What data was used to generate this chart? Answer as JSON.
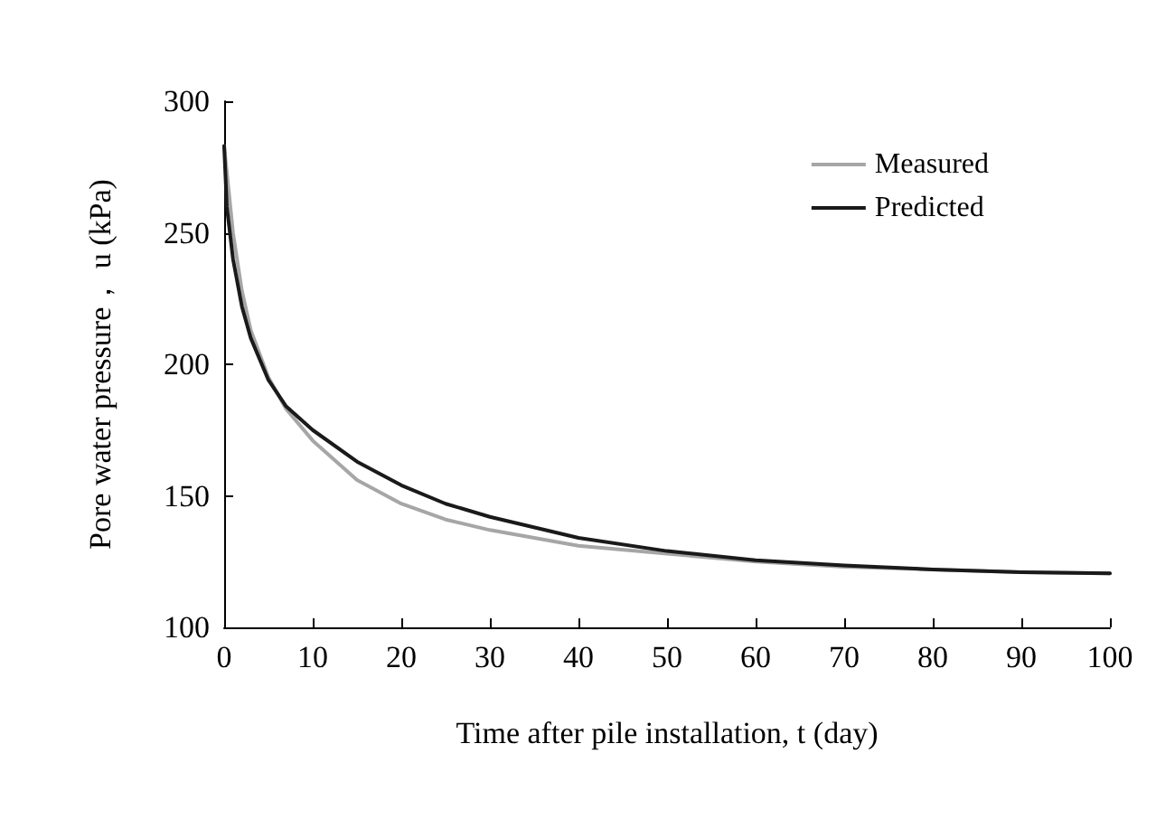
{
  "chart_data": {
    "type": "line",
    "xlabel": "Time after pile installation, t (day)",
    "ylabel": "Pore water pressure， u (kPa)",
    "x": [
      0,
      1,
      2,
      3,
      5,
      7,
      10,
      15,
      20,
      25,
      30,
      40,
      50,
      60,
      70,
      80,
      90,
      100
    ],
    "series": [
      {
        "name": "Measured",
        "color": "#a6a6a6",
        "values": [
          283,
          250,
          228,
          213,
          195,
          183,
          171,
          156,
          147,
          141,
          137,
          131,
          128,
          125,
          123,
          122,
          121,
          120.5
        ]
      },
      {
        "name": "Predicted",
        "color": "#1a1a1a",
        "x": [
          0,
          0.3,
          1,
          2,
          3,
          5,
          7,
          10,
          15,
          20,
          25,
          30,
          40,
          50,
          60,
          70,
          80,
          90,
          100
        ],
        "values": [
          283,
          260,
          240,
          222,
          210,
          194,
          184,
          175,
          163,
          154,
          147,
          142,
          134,
          129,
          125.5,
          123.5,
          122,
          121,
          120.5
        ]
      }
    ],
    "xlim": [
      0,
      100
    ],
    "xticks": [
      0,
      10,
      20,
      30,
      40,
      50,
      60,
      70,
      80,
      90,
      100
    ],
    "ylim": [
      100,
      300
    ],
    "yticks": [
      100,
      150,
      200,
      250,
      300
    ],
    "grid": false,
    "legend": "top right",
    "marker": "none",
    "line_style": "solid"
  }
}
